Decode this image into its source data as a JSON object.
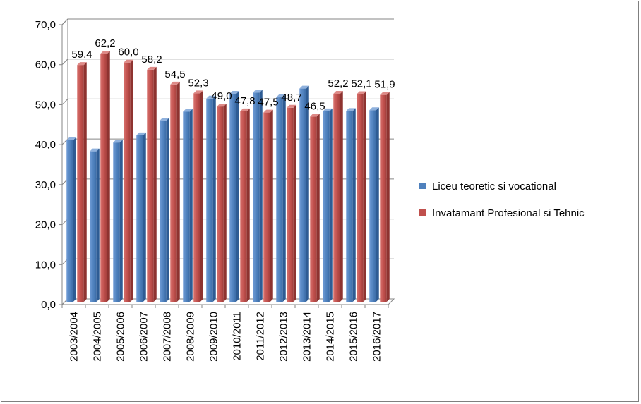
{
  "chart_data": {
    "type": "bar",
    "title": "",
    "xlabel": "",
    "ylabel": "",
    "ylim": [
      0,
      70
    ],
    "ytick_step": 10,
    "ytick_labels": [
      "0,0",
      "10,0",
      "20,0",
      "30,0",
      "40,0",
      "50,0",
      "60,0",
      "70,0"
    ],
    "grid": true,
    "legend_position": "right",
    "categories": [
      "2003/2004",
      "2004/2005",
      "2005/2006",
      "2006/2007",
      "2007/2008",
      "2008/2009",
      "2009/2010",
      "2010/2011",
      "2011/2012",
      "2012/2013",
      "2013/2014",
      "2014/2015",
      "2015/2016",
      "2016/2017"
    ],
    "series": [
      {
        "name": "Liceu teoretic si vocational",
        "color": "#4f81bd",
        "values": [
          40.6,
          37.8,
          40.0,
          41.8,
          45.5,
          47.7,
          51.0,
          52.2,
          52.5,
          51.3,
          53.5,
          47.8,
          47.9,
          48.1
        ],
        "data_labels": []
      },
      {
        "name": "Invatamant Profesional si Tehnic",
        "color": "#c0504d",
        "values": [
          59.4,
          62.2,
          60.0,
          58.2,
          54.5,
          52.3,
          49.0,
          47.8,
          47.5,
          48.7,
          46.5,
          52.2,
          52.1,
          51.9
        ],
        "data_labels": [
          "59,4",
          "62,2",
          "60,0",
          "58,2",
          "54,5",
          "52,3",
          "49,0",
          "47,8",
          "47,5",
          "48,7",
          "46,5",
          "52,2",
          "52,1",
          "51,9"
        ]
      }
    ]
  }
}
